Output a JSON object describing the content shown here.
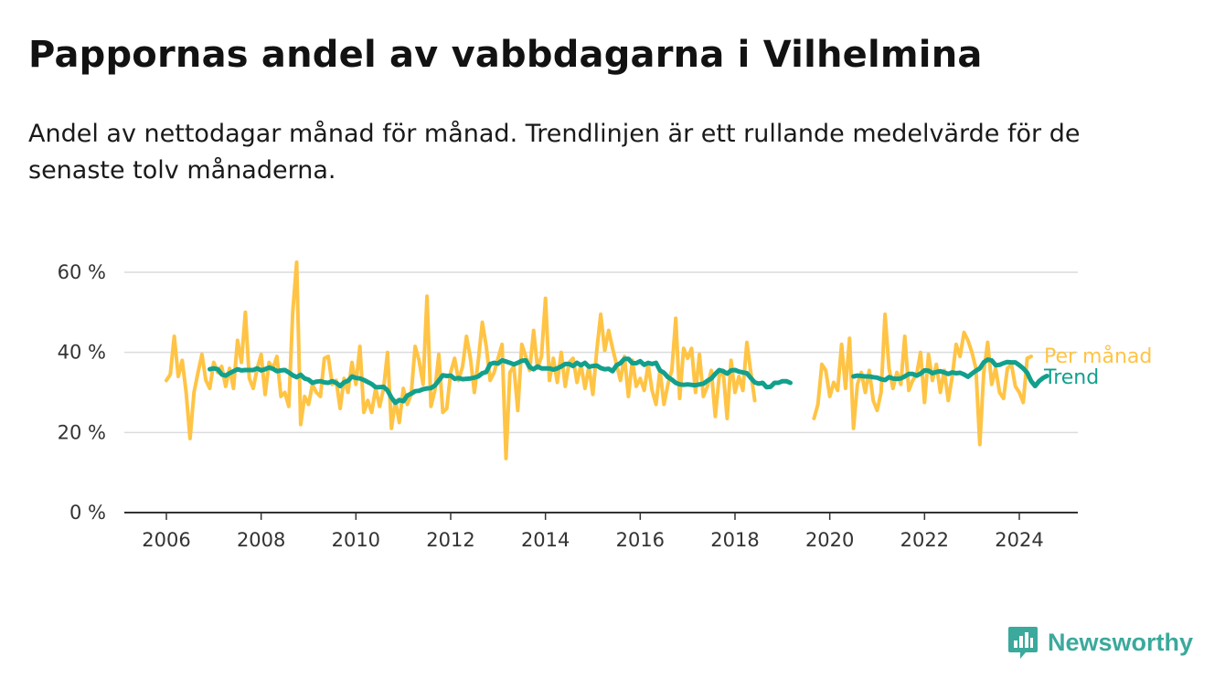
{
  "header": {
    "title": "Pappornas andel av vabbdagarna i Vilhelmina",
    "subtitle": "Andel av nettodagar månad för månad. Trendlinjen är ett rullande medelvärde för de senaste tolv månaderna."
  },
  "brand": {
    "name": "Newsworthy",
    "icon": "newsworthy-logo-icon",
    "color": "#3ba99c"
  },
  "chart_data": {
    "type": "line",
    "x_axis": {
      "range": [
        2005.6,
        2025.1
      ],
      "ticks": [
        2006,
        2008,
        2010,
        2012,
        2014,
        2016,
        2018,
        2020,
        2022,
        2024
      ]
    },
    "y_axis": {
      "range": [
        0,
        60
      ],
      "ticks": [
        0,
        20,
        40,
        60
      ],
      "tick_labels": [
        "0 %",
        "20 %",
        "40 %",
        "60 %"
      ],
      "grid": true
    },
    "legend": "direct labels at line ends (right)",
    "series": [
      {
        "name": "Per månad",
        "color": "#ffc445",
        "segments": [
          {
            "start": "2006-01",
            "values": [
              33,
              34.5,
              44,
              34,
              38,
              30,
              18.5,
              30,
              35,
              39.5,
              33,
              31,
              37.5,
              35,
              36.5,
              31.5,
              36,
              31,
              43,
              37.5,
              50,
              33.5,
              31,
              36,
              39.5,
              29.5,
              37.5,
              36,
              39,
              29,
              30,
              26.5,
              50,
              62.5,
              22,
              29,
              27,
              32,
              30,
              29,
              38.5,
              39,
              32,
              33,
              26,
              33.5,
              30,
              37.5,
              32,
              41.5,
              25,
              28,
              25,
              31,
              26.5,
              31,
              40,
              21,
              28,
              22.5,
              31,
              27,
              29.5,
              41.5,
              38,
              32,
              54,
              26.5,
              30.5,
              39.5,
              25,
              26,
              35,
              38.5,
              33,
              36.5,
              44,
              38.5,
              30,
              38,
              47.5,
              41.5,
              33,
              35,
              38.5,
              42,
              13.5,
              35,
              36.5,
              25.5,
              42,
              39,
              35.5,
              45.5,
              36,
              39,
              53.5,
              33,
              38.5,
              32.5,
              40,
              31.5,
              37.5,
              38.5,
              32.5,
              37,
              31,
              36.5,
              29.5,
              40.5,
              49.5,
              40.5,
              45.5,
              41,
              37,
              33,
              39,
              29,
              38,
              31.5,
              33.5,
              30.5,
              37,
              30.5,
              27,
              35.5,
              27,
              32,
              35.5,
              48.5,
              28.5,
              41,
              38.5,
              41,
              30,
              39.5,
              29,
              31.5,
              35.5,
              24,
              34,
              35.5,
              23.5,
              38,
              30,
              34,
              30.5,
              42.5,
              35,
              28
            ]
          },
          {
            "start": "2019-09",
            "values": [
              23.5,
              27,
              37,
              35.5,
              29,
              32.5,
              30.5,
              42,
              31,
              43.5,
              21,
              32,
              35,
              30,
              35.5,
              28,
              25.5,
              30,
              49.5,
              36,
              31,
              35,
              32,
              44,
              30.5,
              33,
              34.5,
              40,
              27.5,
              39.5,
              33,
              37,
              30,
              35.5,
              28,
              34,
              42,
              39,
              45,
              43,
              40,
              36,
              17,
              35,
              42.5,
              32,
              36,
              30,
              28.5,
              36,
              37,
              31.5,
              30,
              27.5,
              38.5,
              39
            ]
          }
        ]
      },
      {
        "name": "Trend",
        "color": "#12a08d",
        "segments": [
          {
            "start": "2006-12",
            "values": [
              35.8,
              36,
              35.8,
              34.5,
              34.2,
              34.8,
              35.3,
              35.8,
              35.5,
              35.6,
              35.6,
              35.6,
              36,
              35.5,
              35.8,
              36.2,
              35.9,
              35.3,
              35.5,
              35.6,
              35,
              34.3,
              33.8,
              34.4,
              33.5,
              33.2,
              32.4,
              32.7,
              32.8,
              32.5,
              32.4,
              32.8,
              32.4,
              31.6,
              32.5,
              32.9,
              34,
              33.6,
              33.5,
              33.1,
              32.6,
              32.1,
              31.3,
              31.3,
              31.4,
              30.5,
              28.7,
              27.4,
              28.1,
              27.8,
              29.2,
              29.7,
              30.3,
              30.4,
              30.8,
              31,
              31.1,
              31.7,
              33,
              34.3,
              34.1,
              34.2,
              33.4,
              33.6,
              33.3,
              33.4,
              33.5,
              33.7,
              34,
              34.8,
              35.1,
              37.1,
              37.4,
              37.2,
              38,
              37.7,
              37.4,
              37,
              37.4,
              37.9,
              38,
              36.3,
              35.8,
              36.5,
              36,
              36,
              36,
              35.7,
              36,
              36.5,
              37.1,
              37.1,
              36.6,
              37.4,
              36.8,
              37.4,
              36.4,
              36.6,
              36.7,
              36.1,
              35.8,
              35.9,
              35.3,
              36.8,
              37.3,
              38.4,
              38.4,
              37.3,
              37.3,
              37.8,
              36.9,
              37.4,
              37.1,
              37.4,
              35.5,
              34.9,
              33.8,
              33.2,
              32.4,
              32,
              31.9,
              32,
              31.9,
              31.8,
              32,
              32.2,
              32.9,
              33.5,
              34.6,
              35.6,
              35.3,
              34.7,
              35.5,
              35.6,
              35.2,
              35,
              34.8,
              33.6,
              32.5,
              32.2,
              32.4,
              31.3,
              31.4,
              32.4,
              32.4,
              32.8,
              32.8,
              32.4
            ]
          },
          {
            "start": "2020-07",
            "values": [
              34,
              34.2,
              34.1,
              34,
              34,
              33.8,
              33.7,
              33.3,
              33.1,
              33.8,
              33.5,
              33.4,
              33.5,
              34,
              34.6,
              34.6,
              34.2,
              34.7,
              35.5,
              35.4,
              34.8,
              35.1,
              35.3,
              35,
              34.6,
              35,
              34.8,
              34.9,
              34.5,
              33.9,
              34.7,
              35.4,
              36,
              37.5,
              38.2,
              38,
              36.8,
              36.9,
              37.3,
              37.6,
              37.5,
              37.5,
              36.8,
              36,
              34.9,
              32.8,
              31.6,
              32.8,
              33.6,
              34.1
            ]
          }
        ]
      }
    ]
  }
}
